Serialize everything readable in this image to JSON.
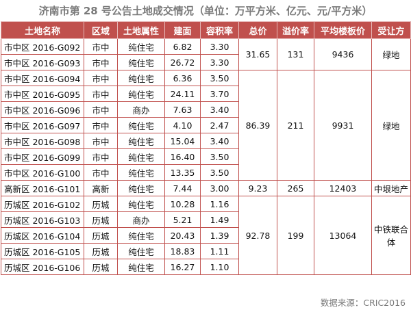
{
  "title": "济南市第 28 号公告土地成交情况（单位：万平方米、亿元、元/平方米）",
  "headers": [
    "土地名称",
    "区域",
    "土地属性",
    "建面",
    "容积率",
    "总价",
    "溢价率",
    "平均楼板价",
    "受让方"
  ],
  "rows": [
    {
      "name": "市中区 2016-G092",
      "area": "市中",
      "type": "纯住宅",
      "size": "6.82",
      "ratio": "3.30"
    },
    {
      "name": "市中区 2016-G093",
      "area": "市中",
      "type": "纯住宅",
      "size": "26.72",
      "ratio": "3.30"
    },
    {
      "name": "市中区 2016-G094",
      "area": "市中",
      "type": "纯住宅",
      "size": "6.36",
      "ratio": "3.50"
    },
    {
      "name": "市中区 2016-G095",
      "area": "市中",
      "type": "纯住宅",
      "size": "24.11",
      "ratio": "3.70"
    },
    {
      "name": "市中区 2016-G096",
      "area": "市中",
      "type": "商办",
      "size": "7.63",
      "ratio": "3.40"
    },
    {
      "name": "市中区 2016-G097",
      "area": "市中",
      "type": "纯住宅",
      "size": "4.10",
      "ratio": "2.47"
    },
    {
      "name": "市中区 2016-G098",
      "area": "市中",
      "type": "纯住宅",
      "size": "15.04",
      "ratio": "3.40"
    },
    {
      "name": "市中区 2016-G099",
      "area": "市中",
      "type": "纯住宅",
      "size": "16.40",
      "ratio": "3.50"
    },
    {
      "name": "市中区 2016-G100",
      "area": "市中",
      "type": "纯住宅",
      "size": "13.35",
      "ratio": "3.50"
    },
    {
      "name": "高新区 2016-G101",
      "area": "高新",
      "type": "纯住宅",
      "size": "7.44",
      "ratio": "3.00"
    },
    {
      "name": "历城区 2016-G102",
      "area": "历城",
      "type": "纯住宅",
      "size": "10.28",
      "ratio": "1.16"
    },
    {
      "name": "历城区 2016-G103",
      "area": "历城",
      "type": "商办",
      "size": "5.21",
      "ratio": "1.49"
    },
    {
      "name": "历城区 2016-G104",
      "area": "历城",
      "type": "纯住宅",
      "size": "20.43",
      "ratio": "1.39"
    },
    {
      "name": "历城区 2016-G105",
      "area": "历城",
      "type": "纯住宅",
      "size": "18.83",
      "ratio": "1.11"
    },
    {
      "name": "历城区 2016-G106",
      "area": "历城",
      "type": "纯住宅",
      "size": "16.27",
      "ratio": "1.10"
    }
  ],
  "groups": [
    {
      "start": 0,
      "span": 2,
      "total": "31.65",
      "premium": "131",
      "floor_price": "9436",
      "buyer": "绿地"
    },
    {
      "start": 2,
      "span": 7,
      "total": "86.39",
      "premium": "211",
      "floor_price": "9931",
      "buyer": "绿地"
    },
    {
      "start": 9,
      "span": 1,
      "total": "9.23",
      "premium": "265",
      "floor_price": "12403",
      "buyer": "中垠地产"
    },
    {
      "start": 10,
      "span": 5,
      "total": "92.78",
      "premium": "199",
      "floor_price": "13064",
      "buyer": "中铁联合体"
    }
  ],
  "source": "数据来源：CRIC2016",
  "colors": {
    "header_bg": "#c0504d",
    "border": "#c0504d",
    "title": "#7a7a7a"
  }
}
